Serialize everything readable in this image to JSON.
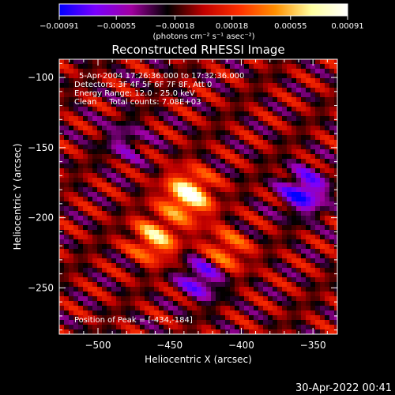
{
  "chart_data": {
    "type": "heatmap",
    "title": "Reconstructed RHESSI Image",
    "xlabel": "Heliocentric X (arcsec)",
    "ylabel": "Heliocentric Y (arcsec)",
    "xlim": [
      -527,
      -333
    ],
    "ylim": [
      -283,
      -87
    ],
    "x_ticks": [
      -500,
      -450,
      -400,
      -350
    ],
    "y_ticks": [
      -100,
      -150,
      -200,
      -250
    ],
    "x_tick_labels": [
      "−500",
      "−450",
      "−400",
      "−350"
    ],
    "y_tick_labels": [
      "−100",
      "−150",
      "−200",
      "−250"
    ],
    "colorbar": {
      "range": [
        -0.00091,
        0.00091
      ],
      "ticks": [
        -0.00091,
        -0.00055,
        -0.00018,
        0.00018,
        0.00055,
        0.00091
      ],
      "tick_labels": [
        "−0.00091",
        "−0.00055",
        "−0.00018",
        "0.00018",
        "0.00055",
        "0.00091"
      ],
      "units": "(photons cm⁻² s⁻¹ asec⁻²)",
      "colors": [
        "#0000ff",
        "#7a00ff",
        "#a000a0",
        "#000000",
        "#c00000",
        "#ff3000",
        "#ff9000",
        "#ffffa0",
        "#ffffff"
      ]
    },
    "peak": [
      -434,
      -184
    ],
    "sources": [
      {
        "x": -437,
        "y": -184,
        "value": 0.00091
      },
      {
        "x": -460,
        "y": -215,
        "value": 0.00065
      },
      {
        "x": -412,
        "y": -225,
        "value": 0.0005
      },
      {
        "x": -482,
        "y": -145,
        "value": -0.0003
      },
      {
        "x": -356,
        "y": -182,
        "value": -0.0007
      },
      {
        "x": -427,
        "y": -242,
        "value": -0.0006
      }
    ]
  },
  "annotations": {
    "time_range": "5-Apr-2004 17:26:36.000 to 17:32:36.000",
    "detectors": "Detectors: 3F 4F 5F 6F 7F 8F, Att 0",
    "energy": "Energy Range: 12.0 - 25.0 keV",
    "clean": "Clean     Total counts: 7.08E+03",
    "peak_label": "Position of Peak = [-434,-184]"
  },
  "timestamp": "30-Apr-2022 00:41"
}
